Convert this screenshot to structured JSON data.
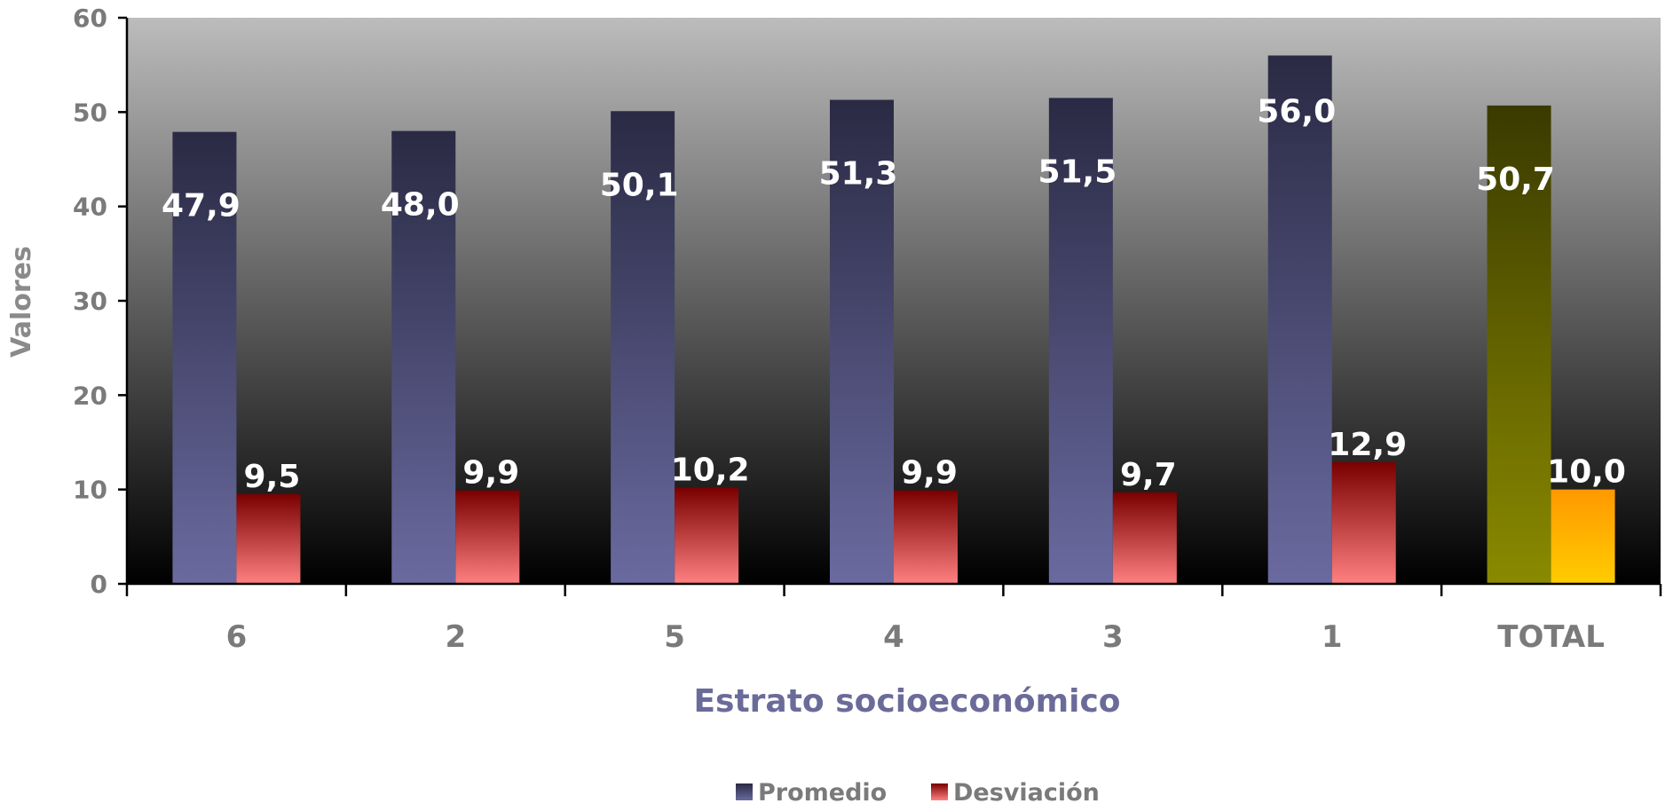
{
  "chart_data": {
    "type": "bar",
    "title": "",
    "xlabel": "Estrato socioeconómico",
    "ylabel": "Valores",
    "ylim": [
      0,
      60
    ],
    "yticks": [
      0,
      10,
      20,
      30,
      40,
      50,
      60
    ],
    "categories": [
      "6",
      "2",
      "5",
      "4",
      "3",
      "1",
      "TOTAL"
    ],
    "series": [
      {
        "name": "Promedio",
        "values": [
          47.9,
          48.0,
          50.1,
          51.3,
          51.5,
          56.0,
          50.7
        ],
        "labels": [
          "47,9",
          "48,0",
          "50,1",
          "51,3",
          "51,5",
          "56,0",
          "50,7"
        ],
        "color_top": "#2a2a44",
        "color_bottom": "#6a6aa0",
        "total_color_top": "#3a3a00",
        "total_color_bottom": "#8a8a00"
      },
      {
        "name": "Desviación",
        "values": [
          9.5,
          9.9,
          10.2,
          9.9,
          9.7,
          12.9,
          10.0
        ],
        "labels": [
          "9,5",
          "9,9",
          "10,2",
          "9,9",
          "9,7",
          "12,9",
          "10,0"
        ],
        "color_top": "#7a0000",
        "color_bottom": "#ff8080",
        "total_color_top": "#ff9900",
        "total_color_bottom": "#ffcc00"
      }
    ],
    "grid": false,
    "legend_position": "bottom-center",
    "background_gradient": [
      "#bcbcbc",
      "#000000"
    ]
  }
}
